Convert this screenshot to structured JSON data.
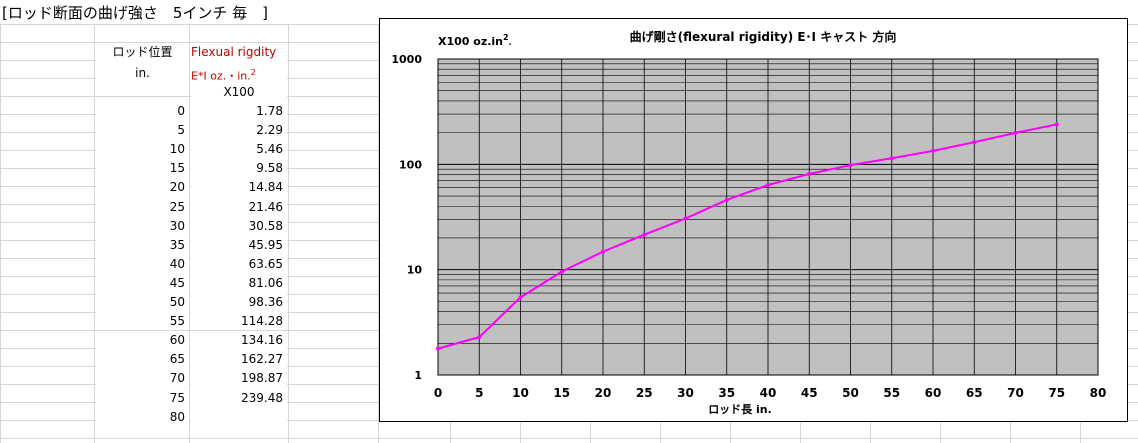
{
  "sheet": {
    "title": "[ロッド断面の曲げ強さ　5インチ 毎　]",
    "col_position_header": "ロッド位置",
    "col_position_unit": "in.",
    "col_ei_header": "Flexual rigdity",
    "col_ei_unit_base": "E*I  oz.・in.",
    "col_ei_unit_exp": "2",
    "col_ei_scale": "X100",
    "rows": [
      {
        "position": "0",
        "ei": "1.78"
      },
      {
        "position": "5",
        "ei": "2.29"
      },
      {
        "position": "10",
        "ei": "5.46"
      },
      {
        "position": "15",
        "ei": "9.58"
      },
      {
        "position": "20",
        "ei": "14.84"
      },
      {
        "position": "25",
        "ei": "21.46"
      },
      {
        "position": "30",
        "ei": "30.58"
      },
      {
        "position": "35",
        "ei": "45.95"
      },
      {
        "position": "40",
        "ei": "63.65"
      },
      {
        "position": "45",
        "ei": "81.06"
      },
      {
        "position": "50",
        "ei": "98.36"
      },
      {
        "position": "55",
        "ei": "114.28"
      },
      {
        "position": "60",
        "ei": "134.16"
      },
      {
        "position": "65",
        "ei": "162.27"
      },
      {
        "position": "70",
        "ei": "198.87"
      },
      {
        "position": "75",
        "ei": "239.48"
      },
      {
        "position": "80",
        "ei": ""
      }
    ]
  },
  "chart_data": {
    "type": "line",
    "title": "曲げ剛さ(flexural rigidity) E･I  キャスト 方向",
    "ylabel_base": "X100 oz.in",
    "ylabel_exp": "2",
    "ylabel_suffix": ".",
    "xlabel": "ロッド長  in.",
    "yscale": "log",
    "xlim": [
      0,
      80
    ],
    "ylim": [
      1,
      1000
    ],
    "grid": true,
    "x_ticks": [
      "0",
      "5",
      "10",
      "15",
      "20",
      "25",
      "30",
      "35",
      "40",
      "45",
      "50",
      "55",
      "60",
      "65",
      "70",
      "75",
      "80"
    ],
    "y_ticks": [
      "1",
      "10",
      "100",
      "1000"
    ],
    "series": [
      {
        "color": "#ff00ff",
        "x": [
          0,
          5,
          10,
          15,
          20,
          25,
          30,
          35,
          40,
          45,
          50,
          55,
          60,
          65,
          70,
          75
        ],
        "values": [
          1.78,
          2.29,
          5.46,
          9.58,
          14.84,
          21.46,
          30.58,
          45.95,
          63.65,
          81.06,
          98.36,
          114.28,
          134.16,
          162.27,
          198.87,
          239.48
        ]
      }
    ],
    "plot_background": "#c0c0c0"
  }
}
